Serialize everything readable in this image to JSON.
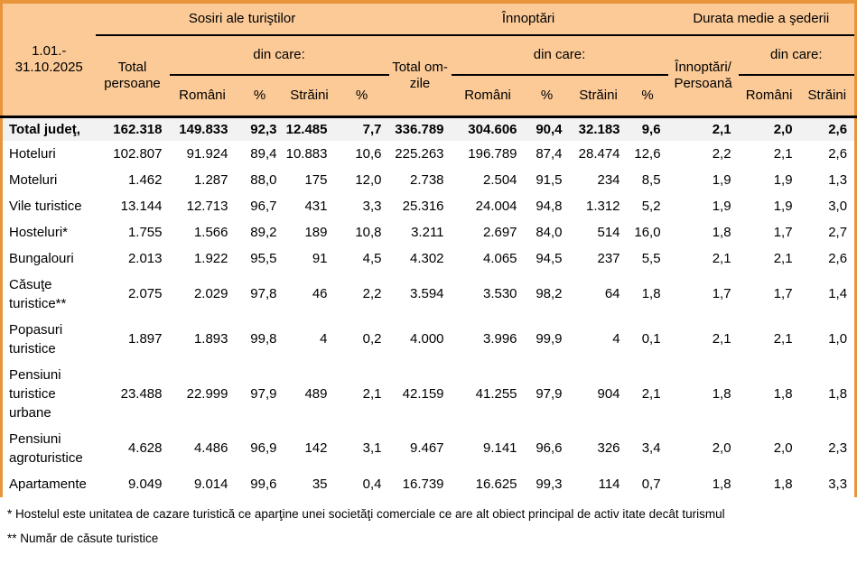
{
  "header": {
    "period": "1.01.- 31.10.2025",
    "groups": {
      "sosiri": "Sosiri ale turiştilor",
      "innoptari": "Înnoptări",
      "durata": "Durata medie a şederii"
    },
    "din_care": "din care:",
    "total_persoane": "Total persoane",
    "total_om_zile": "Total om-zile",
    "innoptari_persoana": "Înnoptări/ Persoană",
    "romani": "Români",
    "straini": "Străini",
    "pct": "%"
  },
  "rows": [
    {
      "label": "Total judeţ,",
      "bold": true,
      "values": [
        "162.318",
        "149.833",
        "92,3",
        "12.485",
        "7,7",
        "336.789",
        "304.606",
        "90,4",
        "32.183",
        "9,6",
        "2,1",
        "2,0",
        "2,6"
      ]
    },
    {
      "label": "Hoteluri",
      "bold": false,
      "values": [
        "102.807",
        "91.924",
        "89,4",
        "10.883",
        "10,6",
        "225.263",
        "196.789",
        "87,4",
        "28.474",
        "12,6",
        "2,2",
        "2,1",
        "2,6"
      ]
    },
    {
      "label": "Moteluri",
      "bold": false,
      "values": [
        "1.462",
        "1.287",
        "88,0",
        "175",
        "12,0",
        "2.738",
        "2.504",
        "91,5",
        "234",
        "8,5",
        "1,9",
        "1,9",
        "1,3"
      ]
    },
    {
      "label": "Vile turistice",
      "bold": false,
      "values": [
        "13.144",
        "12.713",
        "96,7",
        "431",
        "3,3",
        "25.316",
        "24.004",
        "94,8",
        "1.312",
        "5,2",
        "1,9",
        "1,9",
        "3,0"
      ]
    },
    {
      "label": "Hosteluri*",
      "bold": false,
      "values": [
        "1.755",
        "1.566",
        "89,2",
        "189",
        "10,8",
        "3.211",
        "2.697",
        "84,0",
        "514",
        "16,0",
        "1,8",
        "1,7",
        "2,7"
      ]
    },
    {
      "label": "Bungalouri",
      "bold": false,
      "values": [
        "2.013",
        "1.922",
        "95,5",
        "91",
        "4,5",
        "4.302",
        "4.065",
        "94,5",
        "237",
        "5,5",
        "2,1",
        "2,1",
        "2,6"
      ]
    },
    {
      "label": "Căsuţe turistice**",
      "bold": false,
      "values": [
        "2.075",
        "2.029",
        "97,8",
        "46",
        "2,2",
        "3.594",
        "3.530",
        "98,2",
        "64",
        "1,8",
        "1,7",
        "1,7",
        "1,4"
      ]
    },
    {
      "label": "Popasuri turistice",
      "bold": false,
      "values": [
        "1.897",
        "1.893",
        "99,8",
        "4",
        "0,2",
        "4.000",
        "3.996",
        "99,9",
        "4",
        "0,1",
        "2,1",
        "2,1",
        "1,0"
      ]
    },
    {
      "label": "Pensiuni turistice urbane",
      "bold": false,
      "values": [
        "23.488",
        "22.999",
        "97,9",
        "489",
        "2,1",
        "42.159",
        "41.255",
        "97,9",
        "904",
        "2,1",
        "1,8",
        "1,8",
        "1,8"
      ]
    },
    {
      "label": "Pensiuni agroturistice",
      "bold": false,
      "values": [
        "4.628",
        "4.486",
        "96,9",
        "142",
        "3,1",
        "9.467",
        "9.141",
        "96,6",
        "326",
        "3,4",
        "2,0",
        "2,0",
        "2,3"
      ]
    },
    {
      "label": "Apartamente",
      "bold": false,
      "values": [
        "9.049",
        "9.014",
        "99,6",
        "35",
        "0,4",
        "16.739",
        "16.625",
        "99,3",
        "114",
        "0,7",
        "1,8",
        "1,8",
        "3,3"
      ]
    }
  ],
  "footnotes": [
    "* Hostelul este unitatea de cazare turistică ce aparţine unei societăţi comerciale ce are alt obiect principal de activ itate decât turismul",
    "** Număr de căsute turistice"
  ],
  "colors": {
    "header_bg": "#FBCA97",
    "border_orange": "#E8943A",
    "total_row_bg": "#F2F2F2",
    "line_black": "#000000"
  }
}
